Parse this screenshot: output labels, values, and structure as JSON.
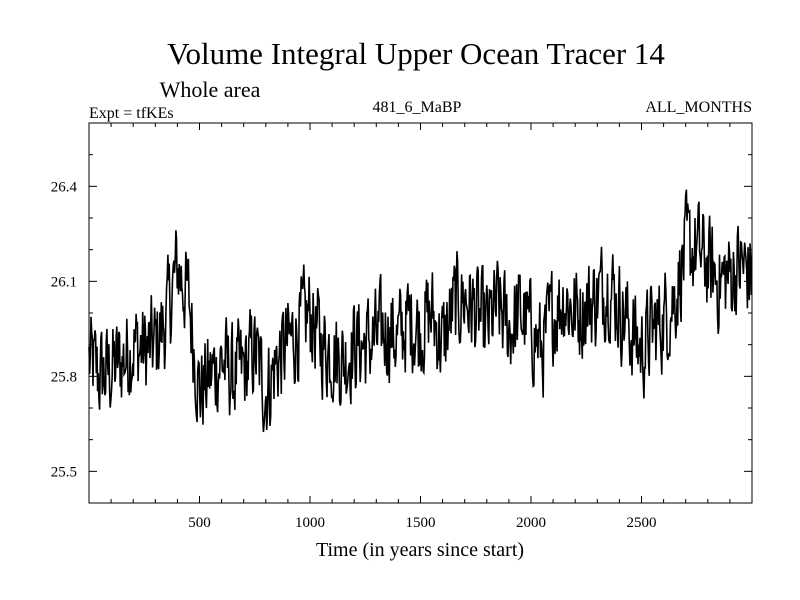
{
  "chart_data": {
    "type": "line",
    "title": "Volume Integral Upper Ocean Tracer 14",
    "subtitle": "Whole area",
    "expt_label": "Expt = tfKEs",
    "run_label": "481_6_MaBP",
    "period_label": "ALL_MONTHS",
    "xlabel": "Time (in years since start)",
    "ylabel": "",
    "xlim": [
      0,
      3000
    ],
    "ylim": [
      25.4,
      26.6
    ],
    "x_ticks": [
      500,
      1000,
      1500,
      2000,
      2500
    ],
    "x_tick_labels": [
      "500",
      "1000",
      "1500",
      "2000",
      "2500"
    ],
    "y_ticks": [
      25.5,
      25.8,
      26.1,
      26.4
    ],
    "y_tick_labels": [
      "25.5",
      "25.8",
      "26.1",
      "26.4"
    ],
    "grid": false,
    "legend": "none",
    "line_color": "#000000",
    "series": [
      {
        "x": [
          0,
          50,
          100,
          150,
          200,
          250,
          300,
          350,
          400,
          450,
          500,
          550,
          600,
          650,
          700,
          750,
          800,
          850,
          900,
          950,
          1000,
          1050,
          1100,
          1150,
          1200,
          1250,
          1300,
          1350,
          1400,
          1450,
          1500,
          1550,
          1600,
          1650,
          1700,
          1750,
          1800,
          1850,
          1900,
          1950,
          2000,
          2050,
          2100,
          2150,
          2200,
          2250,
          2300,
          2350,
          2400,
          2450,
          2500,
          2550,
          2600,
          2650,
          2700,
          2750,
          2800,
          2850,
          2900,
          2950,
          3000
        ],
        "values": [
          25.85,
          25.8,
          25.82,
          25.85,
          25.9,
          25.88,
          25.9,
          25.98,
          26.15,
          26.05,
          25.75,
          25.8,
          25.85,
          25.8,
          25.82,
          25.88,
          25.75,
          25.85,
          25.9,
          25.95,
          26.0,
          25.9,
          25.88,
          25.85,
          25.9,
          25.9,
          25.92,
          25.95,
          25.92,
          25.98,
          25.95,
          26.0,
          25.9,
          26.02,
          26.05,
          26.0,
          25.95,
          26.02,
          25.95,
          26.0,
          25.95,
          25.88,
          26.0,
          26.05,
          26.0,
          26.02,
          26.05,
          26.1,
          26.02,
          25.95,
          25.88,
          25.95,
          25.98,
          26.05,
          26.2,
          26.2,
          26.15,
          26.1,
          26.12,
          26.15,
          26.12
        ]
      }
    ]
  }
}
